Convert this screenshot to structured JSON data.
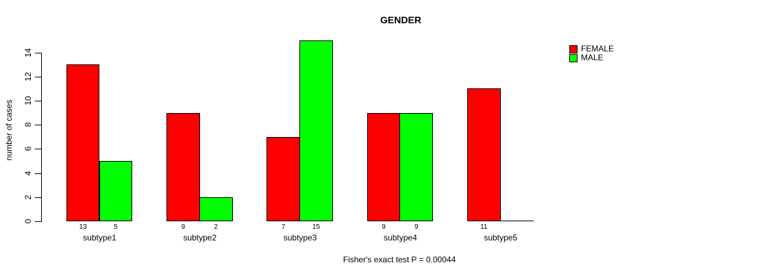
{
  "chart_data": {
    "type": "bar",
    "title": "GENDER",
    "xlabel": "",
    "ylabel": "number of cases",
    "caption": "Fisher's exact test P = 0.00044",
    "categories": [
      "subtype1",
      "subtype2",
      "subtype3",
      "subtype4",
      "subtype5"
    ],
    "series": [
      {
        "name": "FEMALE",
        "color": "#ff0000",
        "values": [
          13,
          9,
          7,
          9,
          11
        ],
        "value_labels": [
          "13",
          "9",
          "7",
          "9",
          "11"
        ]
      },
      {
        "name": "MALE",
        "color": "#00ff00",
        "values": [
          5,
          2,
          15,
          9,
          0
        ],
        "value_labels": [
          "5",
          "2",
          "15",
          "9",
          ""
        ]
      }
    ],
    "ylim": [
      0,
      14
    ],
    "yticks": [
      0,
      2,
      4,
      6,
      8,
      10,
      12,
      14
    ],
    "grid": false,
    "legend_position": "top-right",
    "bar_edge_color": "#000000",
    "background_color": "#ffffff",
    "text_color": "#000000"
  }
}
